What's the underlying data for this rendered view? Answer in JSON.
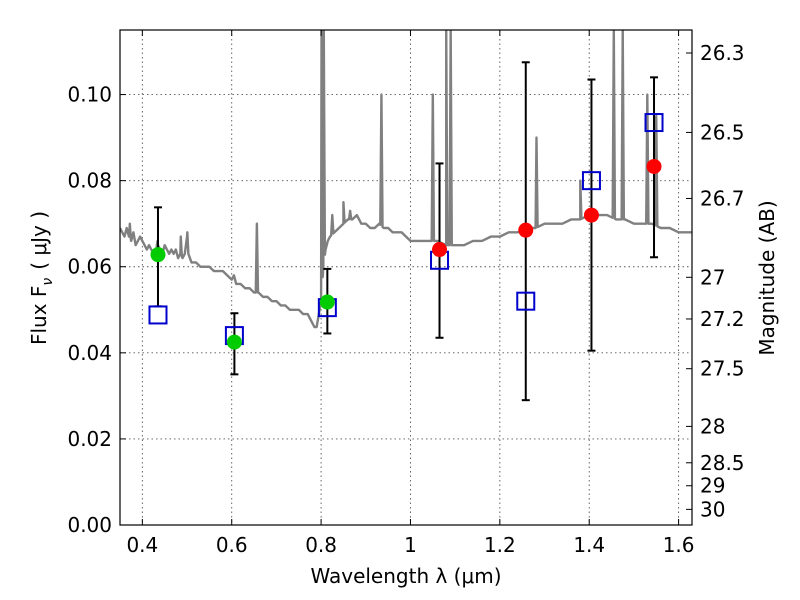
{
  "chart_data": {
    "type": "scatter",
    "title": "",
    "xlabel": "Wavelength  λ (μm)",
    "ylabel": "Flux  F",
    "ylabel_sub": "ν",
    "ylabel_unit": "( μJy )",
    "y2label": "Magnitude (AB)",
    "xlim": [
      0.35,
      1.63
    ],
    "ylim": [
      0,
      0.115
    ],
    "grid": true,
    "x_ticks": [
      {
        "v": 0.4,
        "label": "0.4"
      },
      {
        "v": 0.6,
        "label": "0.6"
      },
      {
        "v": 0.8,
        "label": "0.8"
      },
      {
        "v": 1.0,
        "label": "1"
      },
      {
        "v": 1.2,
        "label": "1.2"
      },
      {
        "v": 1.4,
        "label": "1.4"
      },
      {
        "v": 1.6,
        "label": "1.6"
      }
    ],
    "y_ticks": [
      {
        "v": 0.0,
        "label": "0.00"
      },
      {
        "v": 0.02,
        "label": "0.02"
      },
      {
        "v": 0.04,
        "label": "0.04"
      },
      {
        "v": 0.06,
        "label": "0.06"
      },
      {
        "v": 0.08,
        "label": "0.08"
      },
      {
        "v": 0.1,
        "label": "0.10"
      }
    ],
    "y2_ticks": [
      {
        "mag": 26.3,
        "label": "26.3"
      },
      {
        "mag": 26.5,
        "label": "26.5"
      },
      {
        "mag": 26.7,
        "label": "26.7"
      },
      {
        "mag": 27.0,
        "label": "27"
      },
      {
        "mag": 27.2,
        "label": "27.2"
      },
      {
        "mag": 27.5,
        "label": "27.5"
      },
      {
        "mag": 28.0,
        "label": "28"
      },
      {
        "mag": 28.5,
        "label": "28.5"
      },
      {
        "mag": 29.0,
        "label": "29"
      },
      {
        "mag": 30.0,
        "label": "30"
      }
    ],
    "colors": {
      "model": "#808080",
      "green": "#00cc00",
      "red": "#ff0000",
      "square": "#0000cc",
      "errorbar": "#000000"
    },
    "model_spectrum": [
      [
        0.35,
        0.069
      ],
      [
        0.355,
        0.068
      ],
      [
        0.36,
        0.067
      ],
      [
        0.365,
        0.069
      ],
      [
        0.37,
        0.067
      ],
      [
        0.375,
        0.066
      ],
      [
        0.38,
        0.068
      ],
      [
        0.385,
        0.065
      ],
      [
        0.39,
        0.066
      ],
      [
        0.395,
        0.067
      ],
      [
        0.4,
        0.066
      ],
      [
        0.405,
        0.065
      ],
      [
        0.41,
        0.064
      ],
      [
        0.415,
        0.065
      ],
      [
        0.42,
        0.064
      ],
      [
        0.425,
        0.063
      ],
      [
        0.43,
        0.064
      ],
      [
        0.435,
        0.065
      ],
      [
        0.44,
        0.064
      ],
      [
        0.445,
        0.063
      ],
      [
        0.45,
        0.065
      ],
      [
        0.455,
        0.064
      ],
      [
        0.46,
        0.063
      ],
      [
        0.465,
        0.064
      ],
      [
        0.47,
        0.063
      ],
      [
        0.475,
        0.064
      ],
      [
        0.48,
        0.062
      ],
      [
        0.485,
        0.063
      ],
      [
        0.49,
        0.062
      ],
      [
        0.495,
        0.063
      ],
      [
        0.5,
        0.067
      ],
      [
        0.503,
        0.063
      ],
      [
        0.51,
        0.061
      ],
      [
        0.52,
        0.061
      ],
      [
        0.53,
        0.06
      ],
      [
        0.54,
        0.06
      ],
      [
        0.55,
        0.06
      ],
      [
        0.56,
        0.059
      ],
      [
        0.57,
        0.059
      ],
      [
        0.58,
        0.059
      ],
      [
        0.59,
        0.058
      ],
      [
        0.6,
        0.057
      ],
      [
        0.605,
        0.058
      ],
      [
        0.61,
        0.056
      ],
      [
        0.62,
        0.056
      ],
      [
        0.63,
        0.055
      ],
      [
        0.64,
        0.055
      ],
      [
        0.65,
        0.054
      ],
      [
        0.66,
        0.054
      ],
      [
        0.67,
        0.053
      ],
      [
        0.68,
        0.053
      ],
      [
        0.69,
        0.052
      ],
      [
        0.7,
        0.052
      ],
      [
        0.71,
        0.051
      ],
      [
        0.72,
        0.051
      ],
      [
        0.73,
        0.05
      ],
      [
        0.74,
        0.05
      ],
      [
        0.75,
        0.05
      ],
      [
        0.76,
        0.049
      ],
      [
        0.77,
        0.049
      ],
      [
        0.78,
        0.047
      ],
      [
        0.785,
        0.046
      ],
      [
        0.79,
        0.046
      ],
      [
        0.8,
        0.052
      ],
      [
        0.805,
        0.06
      ],
      [
        0.81,
        0.064
      ],
      [
        0.815,
        0.066
      ],
      [
        0.82,
        0.067
      ],
      [
        0.83,
        0.068
      ],
      [
        0.84,
        0.069
      ],
      [
        0.85,
        0.07
      ],
      [
        0.86,
        0.071
      ],
      [
        0.87,
        0.071
      ],
      [
        0.88,
        0.072
      ],
      [
        0.89,
        0.07
      ],
      [
        0.9,
        0.07
      ],
      [
        0.91,
        0.069
      ],
      [
        0.92,
        0.069
      ],
      [
        0.93,
        0.07
      ],
      [
        0.94,
        0.069
      ],
      [
        0.95,
        0.069
      ],
      [
        0.96,
        0.068
      ],
      [
        0.97,
        0.068
      ],
      [
        0.98,
        0.068
      ],
      [
        0.99,
        0.067
      ],
      [
        1.0,
        0.066
      ],
      [
        1.01,
        0.066
      ],
      [
        1.02,
        0.066
      ],
      [
        1.03,
        0.066
      ],
      [
        1.04,
        0.066
      ],
      [
        1.06,
        0.066
      ],
      [
        1.08,
        0.065
      ],
      [
        1.1,
        0.065
      ],
      [
        1.12,
        0.065
      ],
      [
        1.14,
        0.066
      ],
      [
        1.16,
        0.066
      ],
      [
        1.18,
        0.067
      ],
      [
        1.2,
        0.067
      ],
      [
        1.22,
        0.068
      ],
      [
        1.24,
        0.068
      ],
      [
        1.26,
        0.069
      ],
      [
        1.28,
        0.069
      ],
      [
        1.3,
        0.07
      ],
      [
        1.32,
        0.07
      ],
      [
        1.34,
        0.07
      ],
      [
        1.36,
        0.071
      ],
      [
        1.38,
        0.071
      ],
      [
        1.4,
        0.072
      ],
      [
        1.42,
        0.072
      ],
      [
        1.44,
        0.072
      ],
      [
        1.46,
        0.071
      ],
      [
        1.48,
        0.071
      ],
      [
        1.5,
        0.07
      ],
      [
        1.52,
        0.07
      ],
      [
        1.54,
        0.07
      ],
      [
        1.56,
        0.069
      ],
      [
        1.58,
        0.069
      ],
      [
        1.6,
        0.068
      ],
      [
        1.62,
        0.068
      ],
      [
        1.63,
        0.068
      ]
    ],
    "emission_lines": [
      {
        "x": 0.372,
        "peak": 0.07
      },
      {
        "x": 0.434,
        "peak": 0.066
      },
      {
        "x": 0.486,
        "peak": 0.067
      },
      {
        "x": 0.5007,
        "peak": 0.068
      },
      {
        "x": 0.6563,
        "peak": 0.07
      },
      {
        "x": 0.801,
        "peak": 0.115
      },
      {
        "x": 0.806,
        "peak": 0.115
      },
      {
        "x": 0.825,
        "peak": 0.072
      },
      {
        "x": 0.85,
        "peak": 0.075
      },
      {
        "x": 0.865,
        "peak": 0.073
      },
      {
        "x": 0.935,
        "peak": 0.1
      },
      {
        "x": 1.05,
        "peak": 0.1
      },
      {
        "x": 1.08,
        "peak": 0.115
      },
      {
        "x": 1.09,
        "peak": 0.115
      },
      {
        "x": 1.282,
        "peak": 0.09
      },
      {
        "x": 1.38,
        "peak": 0.08
      },
      {
        "x": 1.455,
        "peak": 0.115
      },
      {
        "x": 1.475,
        "peak": 0.115
      },
      {
        "x": 1.53,
        "peak": 0.1
      },
      {
        "x": 1.55,
        "peak": 0.095
      }
    ],
    "observed_green": [
      {
        "x": 0.435,
        "y": 0.0628,
        "yerr_low": 0.0508,
        "yerr_high": 0.0738
      },
      {
        "x": 0.606,
        "y": 0.0425,
        "yerr_low": 0.035,
        "yerr_high": 0.0492
      },
      {
        "x": 0.814,
        "y": 0.0518,
        "yerr_low": 0.0445,
        "yerr_high": 0.0595
      }
    ],
    "observed_red": [
      {
        "x": 1.065,
        "y": 0.064,
        "yerr_low": 0.0435,
        "yerr_high": 0.084
      },
      {
        "x": 1.258,
        "y": 0.0685,
        "yerr_low": 0.029,
        "yerr_high": 0.1075
      },
      {
        "x": 1.405,
        "y": 0.072,
        "yerr_low": 0.0405,
        "yerr_high": 0.1035
      },
      {
        "x": 1.545,
        "y": 0.0833,
        "yerr_low": 0.0622,
        "yerr_high": 0.104
      }
    ],
    "model_squares": [
      {
        "x": 0.435,
        "y": 0.0488
      },
      {
        "x": 0.606,
        "y": 0.044
      },
      {
        "x": 0.814,
        "y": 0.0505
      },
      {
        "x": 1.065,
        "y": 0.0615
      },
      {
        "x": 1.258,
        "y": 0.052
      },
      {
        "x": 1.405,
        "y": 0.08
      },
      {
        "x": 1.545,
        "y": 0.0935
      }
    ]
  }
}
